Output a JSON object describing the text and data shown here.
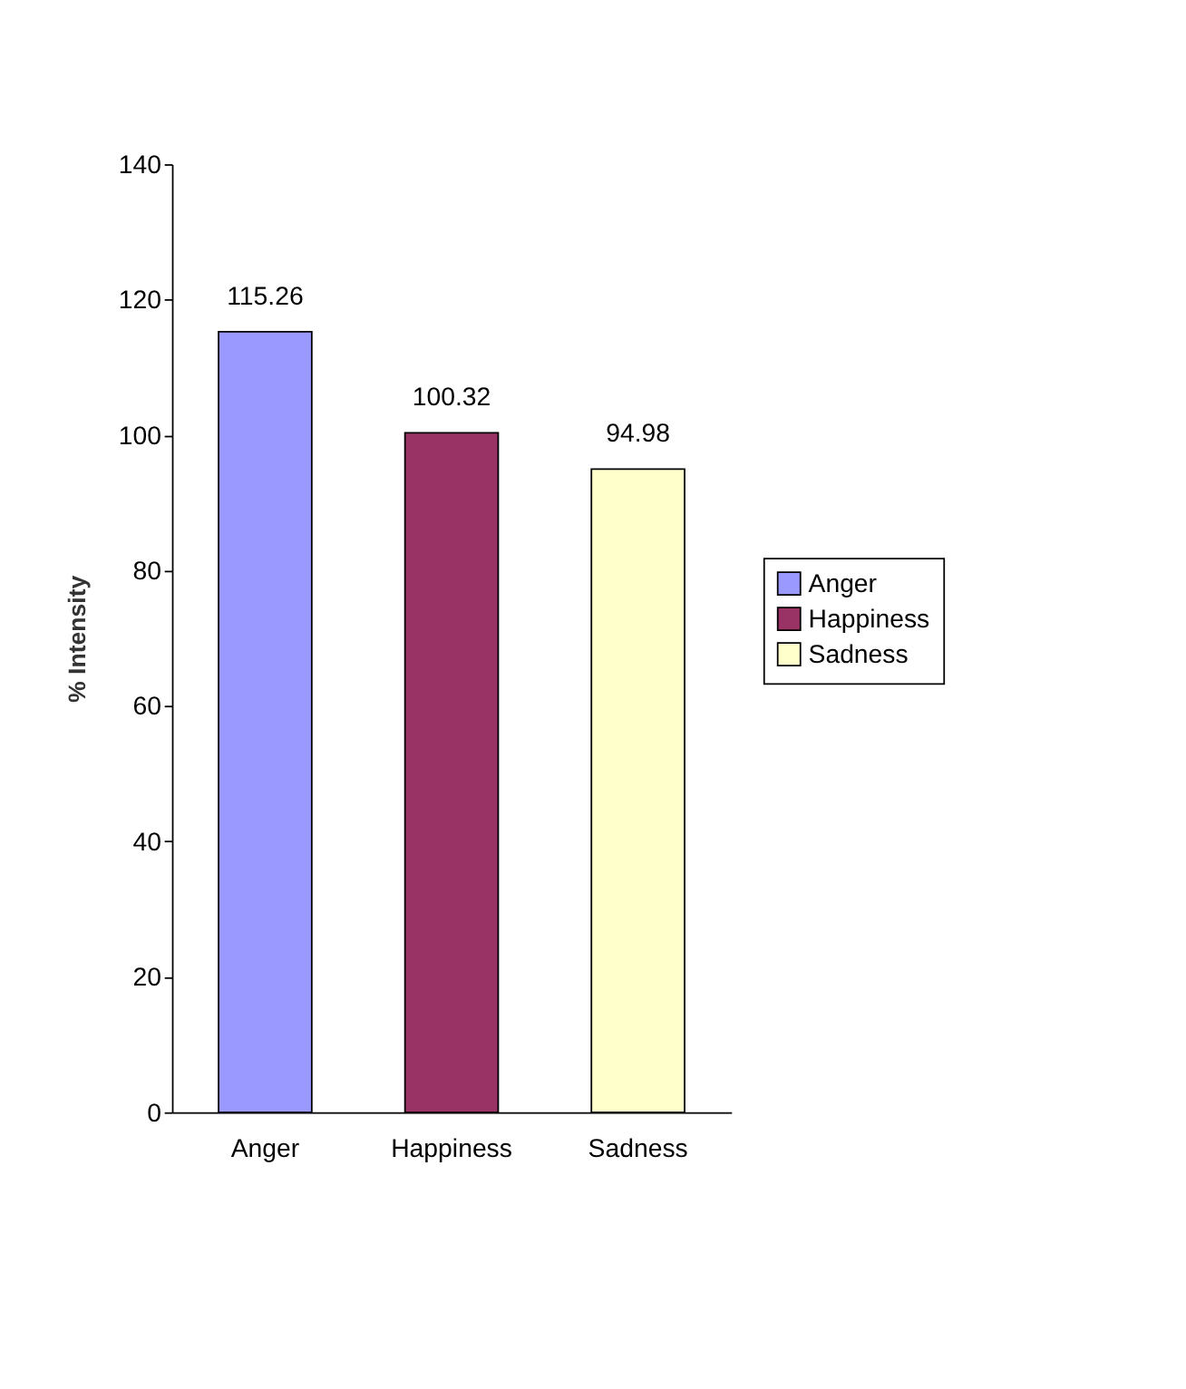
{
  "chart_data": {
    "type": "bar",
    "ylabel": "% Intensity",
    "categories": [
      "Anger",
      "Happiness",
      "Sadness"
    ],
    "series": [
      {
        "name": "Anger",
        "color": "#9999ff",
        "values": [
          115.26,
          null,
          null
        ]
      },
      {
        "name": "Happiness",
        "color": "#993366",
        "values": [
          null,
          100.32,
          null
        ]
      },
      {
        "name": "Sadness",
        "color": "#ffffcc",
        "values": [
          null,
          null,
          94.98
        ]
      }
    ],
    "ylim": [
      0,
      140
    ],
    "yticks": [
      0,
      20,
      40,
      60,
      80,
      100,
      120,
      140
    ],
    "data_labels": true,
    "grid": false,
    "legend": "right"
  }
}
